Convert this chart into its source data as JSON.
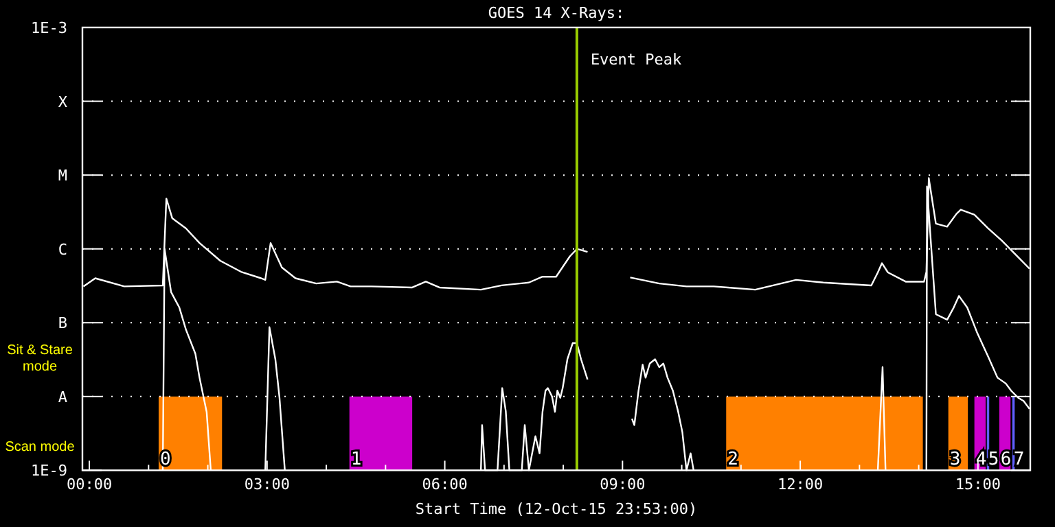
{
  "chart_data": {
    "type": "line",
    "title": "GOES 14 X-Rays:",
    "xlabel": "Start Time (12-Oct-15 23:53:00)",
    "log": "y",
    "grid": "y",
    "marker": "none",
    "line_style": "solid",
    "xlim": [
      -0.1167,
      15.8833
    ],
    "xticks": [
      {
        "value": 0,
        "label": "00:00"
      },
      {
        "value": 1,
        "label": null
      },
      {
        "value": 2,
        "label": null
      },
      {
        "value": 3,
        "label": "03:00"
      },
      {
        "value": 4,
        "label": null
      },
      {
        "value": 5,
        "label": null
      },
      {
        "value": 6,
        "label": "06:00"
      },
      {
        "value": 7,
        "label": null
      },
      {
        "value": 8,
        "label": null
      },
      {
        "value": 9,
        "label": "09:00"
      },
      {
        "value": 10,
        "label": null
      },
      {
        "value": 11,
        "label": null
      },
      {
        "value": 12,
        "label": "12:00"
      },
      {
        "value": 13,
        "label": null
      },
      {
        "value": 14,
        "label": null
      },
      {
        "value": 15,
        "label": "15:00"
      }
    ],
    "ylim": [
      1e-09,
      0.001
    ],
    "yticks": [
      {
        "value": 1e-09,
        "label": "1E-9"
      },
      {
        "value": 1e-08,
        "label": "A"
      },
      {
        "value": 1e-07,
        "label": "B"
      },
      {
        "value": 1e-06,
        "label": "C"
      },
      {
        "value": 1e-05,
        "label": "M"
      },
      {
        "value": 0.0001,
        "label": "X"
      },
      {
        "value": 0.001,
        "label": "1E-3"
      }
    ],
    "series": [
      {
        "color": "#ffffff",
        "x": [
          -0.1,
          0.1,
          0.59,
          1.24,
          1.3,
          1.4,
          1.63,
          1.86,
          2.21,
          2.56,
          2.9,
          2.97,
          3.06,
          3.25,
          3.48,
          3.83,
          4.18,
          4.41,
          4.76,
          5.45,
          5.68,
          5.91,
          6.61,
          6.96,
          7.42,
          7.65,
          7.88,
          8.11,
          8.23,
          8.41,
          8.8,
          9.13,
          9.62,
          10.08,
          10.54,
          10.78,
          11.24,
          11.93,
          12.39,
          13.2,
          13.31,
          13.38,
          13.48,
          13.78,
          14.09,
          14.13,
          14.17,
          14.29,
          14.48,
          14.64,
          14.71,
          14.94,
          15.17,
          15.4,
          15.64,
          15.87
        ],
        "values": [
          3.1e-07,
          4e-07,
          3.1e-07,
          3.2e-07,
          4.8e-06,
          2.6e-06,
          1.9e-06,
          1.2e-06,
          6.9e-07,
          4.9e-07,
          4e-07,
          3.8e-07,
          1.2e-06,
          5.6e-07,
          4e-07,
          3.4e-07,
          3.6e-07,
          3.1e-07,
          3.1e-07,
          3e-07,
          3.6e-07,
          3e-07,
          2.8e-07,
          3.2e-07,
          3.5e-07,
          4.2e-07,
          4.2e-07,
          7.9e-07,
          1e-06,
          9.1e-07,
          null,
          4.1e-07,
          3.4e-07,
          3.1e-07,
          3.1e-07,
          3e-07,
          2.8e-07,
          3.8e-07,
          3.5e-07,
          3.2e-07,
          4.8e-07,
          6.4e-07,
          4.8e-07,
          3.6e-07,
          3.6e-07,
          4.9e-07,
          9.1e-06,
          2.2e-06,
          2e-06,
          3e-06,
          3.4e-06,
          2.9e-06,
          1.9e-06,
          1.3e-06,
          8.3e-07,
          5.4e-07
        ]
      },
      {
        "color": "#ffffff",
        "x": [
          1.24,
          1.27,
          1.38,
          1.52,
          1.63,
          1.79,
          1.86,
          1.98,
          2.05,
          2.5,
          2.97,
          3.04,
          3.14,
          3.21,
          3.3,
          5.0,
          6.61,
          6.63,
          6.68,
          6.89,
          6.97,
          7.03,
          7.09,
          7.3,
          7.35,
          7.42,
          7.53,
          7.6,
          7.65,
          7.7,
          7.74,
          7.81,
          7.86,
          7.9,
          7.95,
          7.99,
          8.07,
          8.16,
          8.23,
          8.3,
          8.41,
          8.8,
          9.16,
          9.2,
          9.27,
          9.34,
          9.39,
          9.46,
          9.55,
          9.62,
          9.69,
          9.76,
          9.85,
          9.94,
          10.01,
          10.08,
          10.15,
          10.2,
          12.0,
          13.31,
          13.39,
          13.44,
          13.8,
          14.13,
          14.14,
          14.29,
          14.48,
          14.59,
          14.68,
          14.82,
          14.99,
          15.17,
          15.33,
          15.47,
          15.56,
          15.68,
          15.77,
          15.87
        ],
        "values": [
          1e-09,
          1e-06,
          2.6e-07,
          1.6e-07,
          8.1e-08,
          3.8e-08,
          1.8e-08,
          6.2e-09,
          1e-09,
          null,
          1e-09,
          8.7e-08,
          3.2e-08,
          9.6e-09,
          1e-09,
          null,
          1e-09,
          4.1e-09,
          1e-09,
          1e-09,
          1.3e-08,
          6.3e-09,
          1e-09,
          1e-09,
          4.1e-09,
          1e-09,
          2.9e-09,
          1.7e-09,
          6.2e-09,
          1.2e-08,
          1.3e-08,
          1e-08,
          6.2e-09,
          1.2e-08,
          9.6e-09,
          1.3e-08,
          3.2e-08,
          5.3e-08,
          5.3e-08,
          3.2e-08,
          1.7e-08,
          null,
          5e-09,
          4.1e-09,
          1.2e-08,
          2.7e-08,
          1.8e-08,
          2.8e-08,
          3.2e-08,
          2.5e-08,
          2.8e-08,
          1.8e-08,
          1.2e-08,
          6.2e-09,
          3.3e-09,
          1e-09,
          1.7e-09,
          1e-09,
          null,
          1e-09,
          2.5e-08,
          1e-09,
          null,
          1e-09,
          7e-06,
          1.3e-07,
          1.1e-07,
          1.6e-07,
          2.3e-07,
          1.6e-07,
          7.2e-08,
          3.5e-08,
          1.8e-08,
          1.5e-08,
          1.2e-08,
          9.6e-09,
          8.7e-09,
          6.8e-09
        ]
      }
    ],
    "ref_lines": [
      {
        "axis": "x",
        "value": 8.23,
        "label": "Event Peak",
        "color": "#99cc00"
      }
    ],
    "bands": [
      {
        "axis": "x",
        "from": 1.17,
        "to": 2.24,
        "label": "0",
        "color": "#ff8000"
      },
      {
        "axis": "x",
        "from": 4.39,
        "to": 5.45,
        "label": "1",
        "color": "#cc00cc"
      },
      {
        "axis": "x",
        "from": 10.75,
        "to": 14.07,
        "label": "2",
        "color": "#ff8000"
      },
      {
        "axis": "x",
        "from": 14.5,
        "to": 14.83,
        "label": "3",
        "color": "#ff8000"
      },
      {
        "axis": "x",
        "from": 14.94,
        "to": 15.13,
        "label": "4",
        "color": "#cc00cc"
      },
      {
        "axis": "x",
        "from": 15.15,
        "to": 15.19,
        "label": "5",
        "color": "#6060ff"
      },
      {
        "axis": "x",
        "from": 15.36,
        "to": 15.55,
        "label": "6",
        "color": "#cc00cc"
      },
      {
        "axis": "x",
        "from": 15.58,
        "to": 15.62,
        "label": "7",
        "color": "#6060ff"
      }
    ],
    "annotations": [
      "Sit & Stare mode",
      "Scan mode"
    ]
  }
}
